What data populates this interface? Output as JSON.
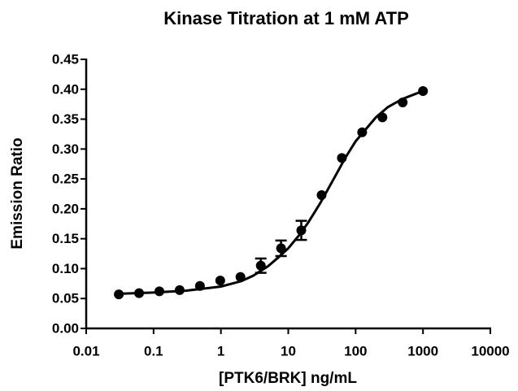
{
  "chart_data": {
    "type": "scatter",
    "title": "Kinase Titration at 1 mM ATP",
    "x_label": "[PTK6/BRK] ng/mL",
    "y_label": "Emission Ratio",
    "xscale": "log",
    "color": "#000000",
    "x": [
      0.0305,
      0.061,
      0.122,
      0.244,
      0.488,
      0.977,
      1.95,
      3.91,
      7.81,
      15.6,
      31.25,
      62.5,
      125,
      250,
      500,
      1000
    ],
    "values": [
      0.057,
      0.059,
      0.062,
      0.064,
      0.071,
      0.08,
      0.086,
      0.105,
      0.134,
      0.164,
      0.223,
      0.285,
      0.328,
      0.353,
      0.378,
      0.397
    ],
    "errors": [
      null,
      null,
      null,
      null,
      null,
      null,
      null,
      0.012,
      0.013,
      0.016,
      null,
      null,
      null,
      null,
      null,
      null
    ],
    "curve": {
      "x": [
        0.0305,
        0.1,
        0.3,
        1,
        2,
        3,
        5,
        7,
        10,
        15,
        20,
        30,
        50,
        70,
        100,
        200,
        300,
        500,
        1000
      ],
      "values": [
        0.058,
        0.06,
        0.063,
        0.07,
        0.079,
        0.088,
        0.104,
        0.118,
        0.134,
        0.158,
        0.178,
        0.21,
        0.255,
        0.285,
        0.313,
        0.353,
        0.37,
        0.384,
        0.397
      ]
    },
    "xlim": [
      0.01,
      10000
    ],
    "xticks": [
      0.01,
      0.1,
      1,
      10,
      100,
      1000,
      10000
    ],
    "ylim": [
      0,
      0.45
    ],
    "yticks": [
      {
        "value": 0,
        "label": "0.00"
      },
      0.05,
      {
        "value": 0.1,
        "label": "0.10"
      },
      0.15,
      {
        "value": 0.2,
        "label": "0.20"
      },
      0.25,
      {
        "value": 0.3,
        "label": "0.30"
      },
      0.35,
      {
        "value": 0.4,
        "label": "0.40"
      },
      0.45
    ]
  }
}
